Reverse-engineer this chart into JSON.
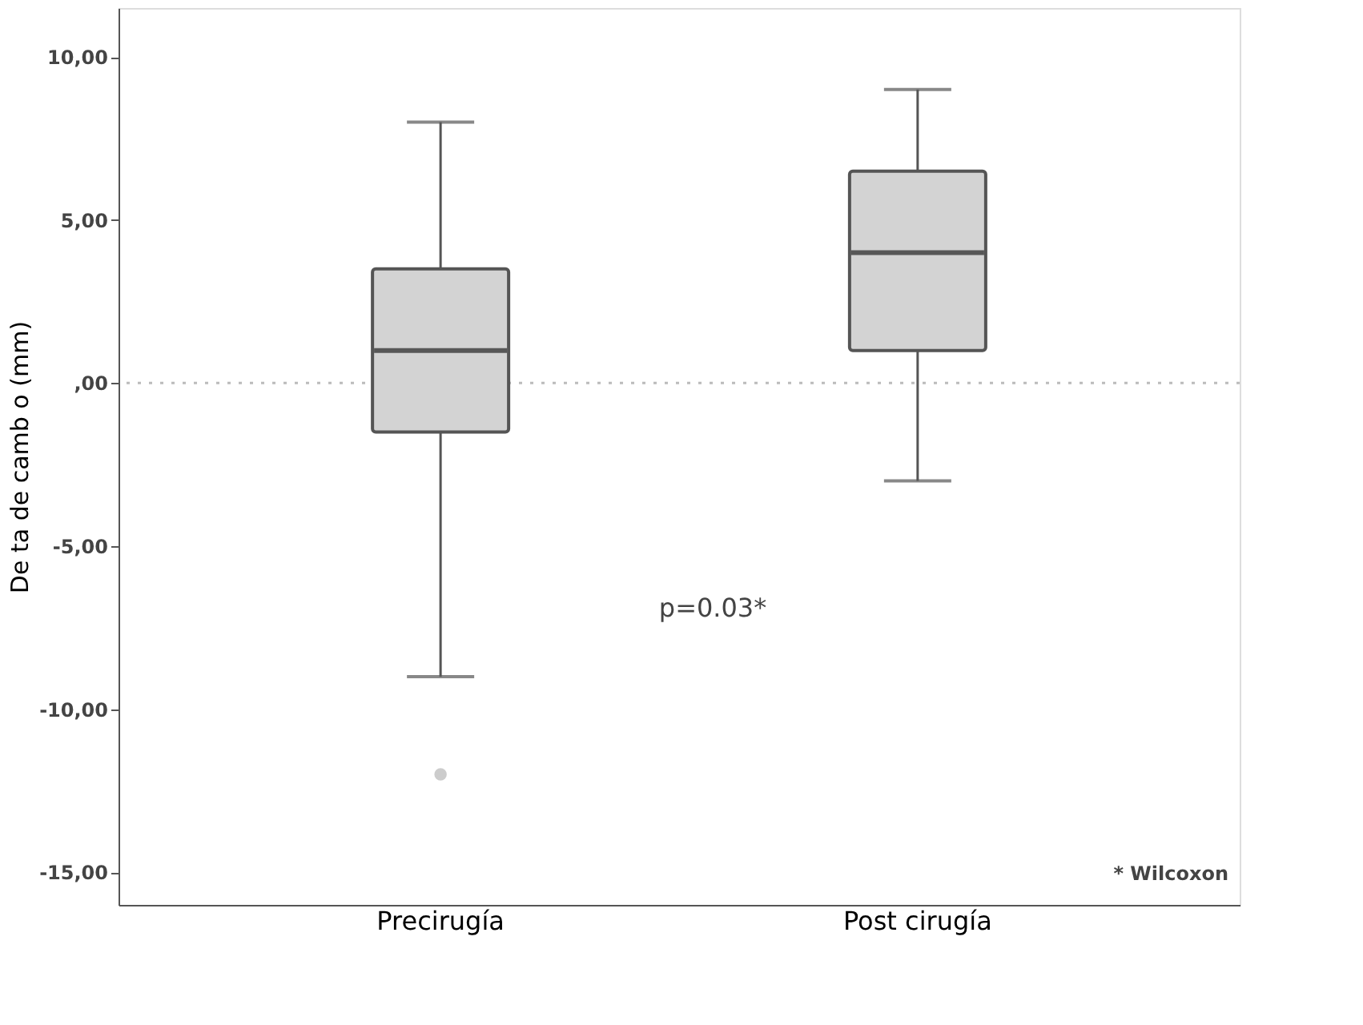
{
  "chart_data": {
    "type": "box",
    "ylabel": "De ta de camb o (mm)",
    "categories": [
      "Precirugía",
      "Post cirugía"
    ],
    "boxes": [
      {
        "low": -9,
        "q1": -1.5,
        "median": 1,
        "q3": 3.5,
        "high": 8,
        "outliers": [
          -12
        ]
      },
      {
        "low": -3,
        "q1": 1,
        "median": 4,
        "q3": 6.5,
        "high": 9
      }
    ],
    "color": "#d3d3d3",
    "ylim": [
      -16,
      11.5
    ],
    "yticks": [
      {
        "value": -15,
        "label": "-15,00"
      },
      {
        "value": -10,
        "label": "-10,00"
      },
      {
        "value": -5,
        "label": "-5,00"
      },
      {
        "value": 0,
        "label": ",00"
      },
      {
        "value": 5,
        "label": "5,00"
      },
      {
        "value": 10,
        "label": "10,00"
      }
    ],
    "ref_lines": [
      {
        "axis": "y",
        "value": 0,
        "color": "#bbbbbb",
        "line_style": "dotted"
      }
    ],
    "annotations": [
      "p=0.03*",
      "* Wilcoxon"
    ],
    "grid": false
  }
}
